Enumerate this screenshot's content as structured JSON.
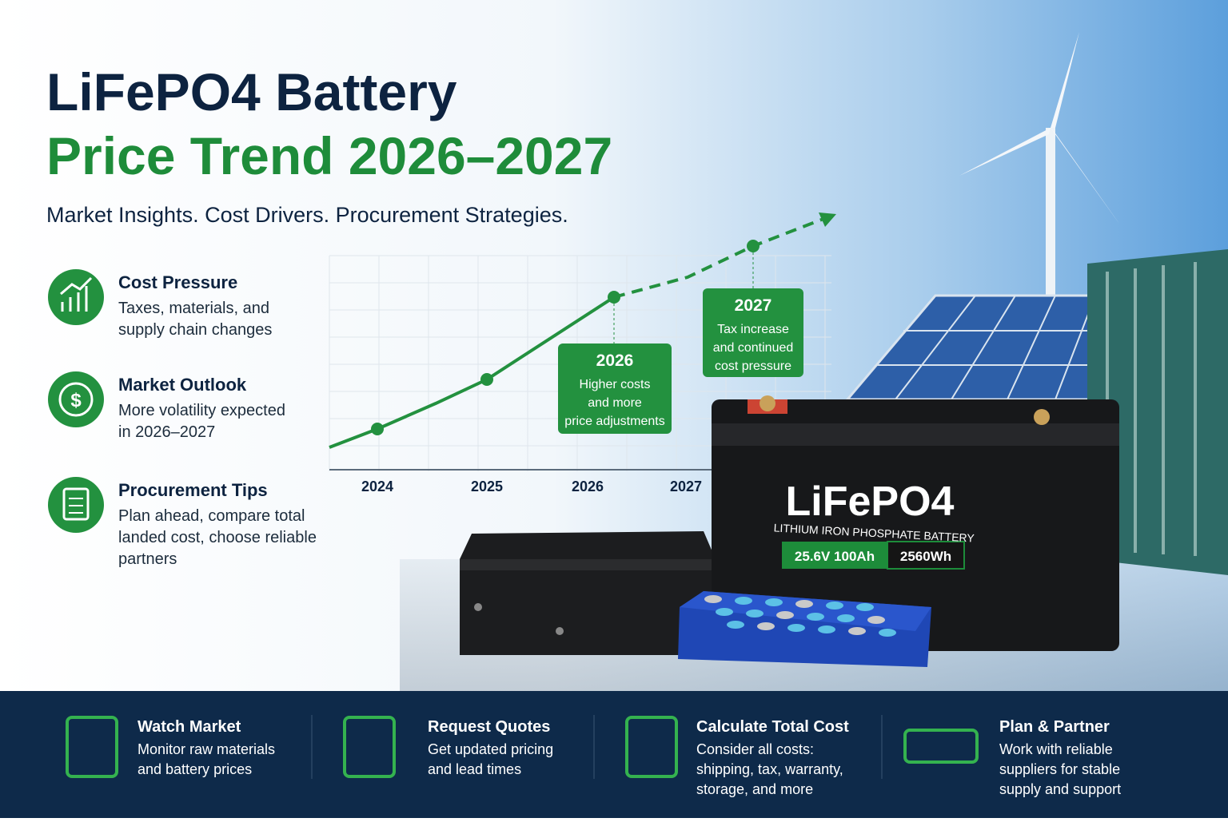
{
  "header": {
    "title_line1": "LiFePO4 Battery",
    "title_line2": "Price Trend 2026–2027",
    "subtitle": "Market Insights. Cost Drivers. Procurement Strategies."
  },
  "features": [
    {
      "title": "Cost Pressure",
      "lines": [
        "Taxes, materials, and",
        "supply chain changes"
      ]
    },
    {
      "title": "Market Outlook",
      "lines": [
        "More volatility expected",
        "in 2026–2027"
      ]
    },
    {
      "title": "Procurement Tips",
      "lines": [
        "Plan ahead, compare total",
        "landed cost, choose reliable",
        "partners"
      ]
    }
  ],
  "chart": {
    "x_labels": [
      "2024",
      "2025",
      "2026",
      "2027"
    ],
    "callouts": [
      {
        "year": "2026",
        "lines": [
          "Higher costs",
          "and more",
          "price adjustments"
        ]
      },
      {
        "year": "2027",
        "lines": [
          "Tax increase",
          "and continued",
          "cost pressure"
        ]
      }
    ]
  },
  "battery": {
    "brand": "LiFePO4",
    "subtitle": "LITHIUM IRON PHOSPHATE BATTERY",
    "specs": [
      "25.6V  100Ah",
      "2560Wh"
    ]
  },
  "footer": [
    {
      "title": "Watch Market",
      "lines": [
        "Monitor raw materials",
        "and battery prices"
      ]
    },
    {
      "title": "Request Quotes",
      "lines": [
        "Get updated pricing",
        "and lead times"
      ]
    },
    {
      "title": "Calculate Total Cost",
      "lines": [
        "Consider all costs:",
        "shipping, tax, warranty,",
        "storage, and more"
      ]
    },
    {
      "title": "Plan & Partner",
      "lines": [
        "Work with reliable",
        "suppliers for stable",
        "supply and support"
      ]
    }
  ]
}
